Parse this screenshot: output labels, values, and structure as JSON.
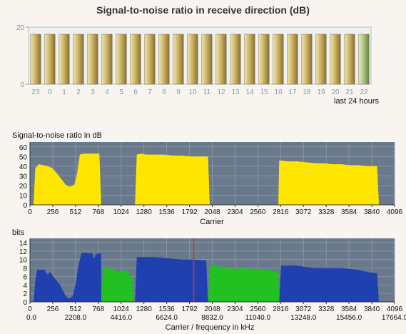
{
  "chart_data": [
    {
      "type": "bar",
      "title": "Signal-to-noise ratio in receive direction (dB)",
      "xlabel": "last 24 hours",
      "ylabel": "",
      "ylim": [
        0,
        20
      ],
      "yticks": [
        0,
        20
      ],
      "categories": [
        "23",
        "0",
        "1",
        "2",
        "3",
        "4",
        "5",
        "6",
        "7",
        "8",
        "9",
        "10",
        "11",
        "12",
        "13",
        "14",
        "15",
        "16",
        "17",
        "18",
        "19",
        "20",
        "21",
        "22"
      ],
      "values": [
        17.5,
        17.5,
        17.5,
        17.5,
        17.5,
        17.5,
        17.5,
        17.5,
        17.5,
        17.5,
        17.5,
        17.5,
        17.5,
        17.5,
        17.5,
        17.5,
        17.5,
        17.5,
        17.5,
        17.5,
        17.5,
        17.5,
        17.5,
        17.5
      ],
      "bar_color": "#c8b060",
      "last_bar_color": "#a8c080",
      "plot_bg": "#eef0f4"
    },
    {
      "type": "area",
      "title": "Signal-to-noise ratio in dB",
      "xlabel": "Carrier",
      "ylabel": "",
      "xlim": [
        0,
        4096
      ],
      "ylim": [
        0,
        65
      ],
      "xticks": [
        0,
        256,
        512,
        768,
        1024,
        1280,
        1536,
        1792,
        2048,
        2304,
        2560,
        2816,
        3072,
        3328,
        3584,
        3840,
        4096
      ],
      "yticks": [
        0,
        10,
        20,
        30,
        40,
        50,
        60
      ],
      "grid": true,
      "fill_color": "#ffe600",
      "plot_bg": "#6a7a8c",
      "series": [
        {
          "x": [
            40,
            60,
            100,
            150,
            200,
            250,
            300,
            350,
            400,
            430,
            460,
            500,
            530,
            560,
            600,
            650,
            700,
            750,
            780,
            800
          ],
          "y": [
            0,
            38,
            42,
            41,
            40,
            38,
            33,
            27,
            21,
            19,
            19,
            21,
            33,
            52,
            53,
            53,
            53,
            53,
            53,
            0
          ]
        },
        {
          "x": [
            1180,
            1200,
            1250,
            1300,
            1400,
            1500,
            1600,
            1700,
            1800,
            1900,
            1950,
            2000,
            2020
          ],
          "y": [
            0,
            52,
            53,
            52,
            52,
            52,
            51,
            51,
            50,
            50,
            50,
            50,
            0
          ]
        },
        {
          "x": [
            2790,
            2800,
            2900,
            3000,
            3100,
            3200,
            3300,
            3400,
            3500,
            3600,
            3700,
            3800,
            3900,
            3920
          ],
          "y": [
            0,
            46,
            45,
            45,
            44,
            43,
            43,
            42,
            42,
            41,
            41,
            40,
            40,
            0
          ]
        }
      ]
    },
    {
      "type": "area",
      "title": "bits",
      "xlabel": "Carrier / frequency in kHz",
      "ylabel": "",
      "xlim": [
        0,
        4096
      ],
      "ylim": [
        0,
        15
      ],
      "xticks": [
        0,
        256,
        512,
        768,
        1024,
        1280,
        1536,
        1792,
        2048,
        2304,
        2560,
        2816,
        3072,
        3328,
        3584,
        3840,
        4096
      ],
      "xticks2": [
        "0.0",
        "2208.0",
        "4416.0",
        "6624.0",
        "8832.0",
        "11040.0",
        "13248.0",
        "15456.0",
        "17664.0"
      ],
      "yticks": [
        0,
        2,
        4,
        6,
        8,
        10,
        12,
        14
      ],
      "grid": true,
      "plot_bg": "#6a7a8c",
      "marker_x": 1840,
      "marker_color": "#cc3333",
      "series": [
        {
          "color": "#2040b0",
          "x": [
            40,
            60,
            80,
            100,
            120,
            140,
            160,
            180,
            200,
            220,
            240,
            260,
            280,
            300,
            320,
            340,
            360,
            380,
            400,
            420,
            440,
            460,
            480,
            500,
            520,
            540,
            560,
            580,
            600,
            620,
            640,
            660,
            680,
            700,
            720,
            740,
            760,
            780,
            800,
            801
          ],
          "y": [
            0,
            5,
            7.6,
            7.6,
            7.6,
            7.6,
            7.6,
            7,
            6.4,
            7,
            6.8,
            6,
            5.5,
            5,
            4.5,
            4,
            3,
            2.3,
            1.5,
            1,
            0.8,
            1,
            1.4,
            3,
            5,
            8,
            10,
            11.6,
            11.6,
            11.6,
            11.6,
            11.4,
            11.6,
            11.4,
            10.2,
            11.3,
            11.4,
            11.5,
            11.5,
            0
          ]
        },
        {
          "color": "#22c020",
          "x": [
            801,
            820,
            850,
            880,
            900,
            950,
            1000,
            1050,
            1100,
            1150,
            1160
          ],
          "y": [
            0,
            8.4,
            8.2,
            8.2,
            7.8,
            7.5,
            7,
            7.5,
            7.2,
            5.5,
            0
          ]
        },
        {
          "color": "#2040b0",
          "x": [
            1180,
            1200,
            1300,
            1400,
            1500,
            1600,
            1700,
            1800,
            1900,
            1980,
            2000
          ],
          "y": [
            0,
            10.6,
            10.6,
            10.6,
            10.4,
            10.2,
            10,
            10,
            9.9,
            9.8,
            0
          ]
        },
        {
          "color": "#22c020",
          "x": [
            2000,
            2020,
            2100,
            2200,
            2300,
            2400,
            2500,
            2600,
            2700,
            2790,
            2800
          ],
          "y": [
            0,
            8.6,
            8.4,
            8,
            7.8,
            8,
            7.8,
            7.8,
            7.5,
            7,
            0
          ]
        },
        {
          "color": "#2040b0",
          "x": [
            2800,
            2820,
            2900,
            3000,
            3100,
            3200,
            3300,
            3400,
            3500,
            3600,
            3700,
            3800,
            3900,
            3920
          ],
          "y": [
            0,
            8.6,
            8.6,
            8.6,
            8.2,
            8,
            8,
            8,
            8,
            7.8,
            7.5,
            7,
            6.8,
            0
          ]
        }
      ]
    }
  ]
}
